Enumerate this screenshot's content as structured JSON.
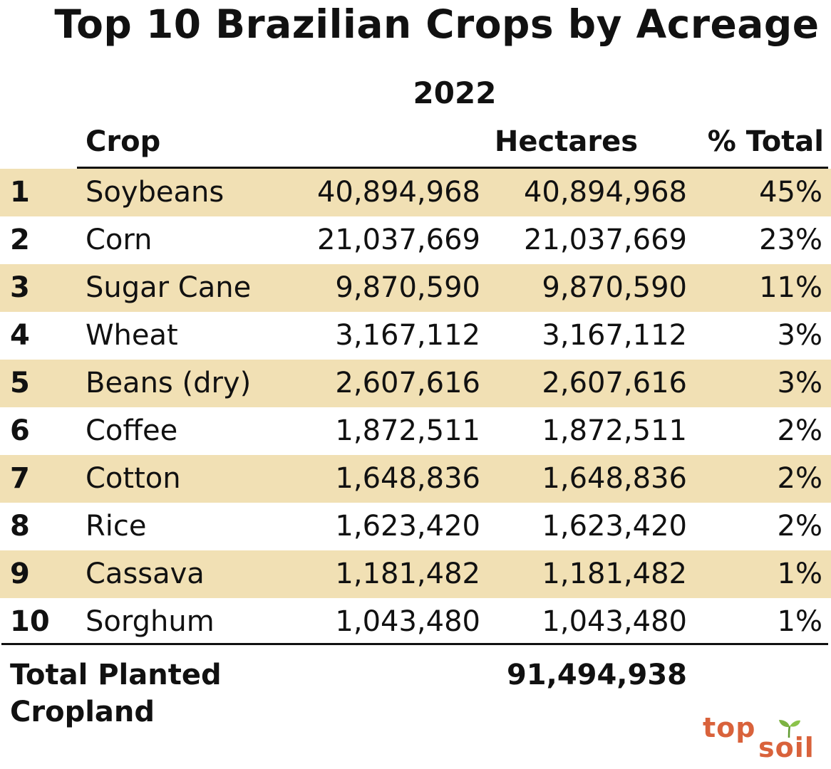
{
  "chart_data": {
    "type": "table",
    "title": "Top 10 Brazilian Crops by Acreage",
    "subtitle": "2022",
    "columns": [
      "Crop",
      "Hectares",
      "% Total"
    ],
    "rows": [
      {
        "rank": "1",
        "crop": "Soybeans",
        "value_a": "40,894,968",
        "value_b": "40,894,968",
        "pct": "45%"
      },
      {
        "rank": "2",
        "crop": "Corn",
        "value_a": "21,037,669",
        "value_b": "21,037,669",
        "pct": "23%"
      },
      {
        "rank": "3",
        "crop": "Sugar Cane",
        "value_a": "9,870,590",
        "value_b": "9,870,590",
        "pct": "11%"
      },
      {
        "rank": "4",
        "crop": "Wheat",
        "value_a": "3,167,112",
        "value_b": "3,167,112",
        "pct": "3%"
      },
      {
        "rank": "5",
        "crop": "Beans (dry)",
        "value_a": "2,607,616",
        "value_b": "2,607,616",
        "pct": "3%"
      },
      {
        "rank": "6",
        "crop": "Coffee",
        "value_a": "1,872,511",
        "value_b": "1,872,511",
        "pct": "2%"
      },
      {
        "rank": "7",
        "crop": "Cotton",
        "value_a": "1,648,836",
        "value_b": "1,648,836",
        "pct": "2%"
      },
      {
        "rank": "8",
        "crop": "Rice",
        "value_a": "1,623,420",
        "value_b": "1,623,420",
        "pct": "2%"
      },
      {
        "rank": "9",
        "crop": "Cassava",
        "value_a": "1,181,482",
        "value_b": "1,181,482",
        "pct": "1%"
      },
      {
        "rank": "10",
        "crop": "Sorghum",
        "value_a": "1,043,480",
        "value_b": "1,043,480",
        "pct": "1%"
      }
    ],
    "total": {
      "label": "Total Planted\nCropland",
      "value": "91,494,938"
    },
    "row_shade_color": "#f1e0b4"
  },
  "logo": {
    "top": "top",
    "bottom": "soil",
    "color": "#d9623b",
    "leaf_color": "#7cb342",
    "icon": "sprout-icon"
  }
}
